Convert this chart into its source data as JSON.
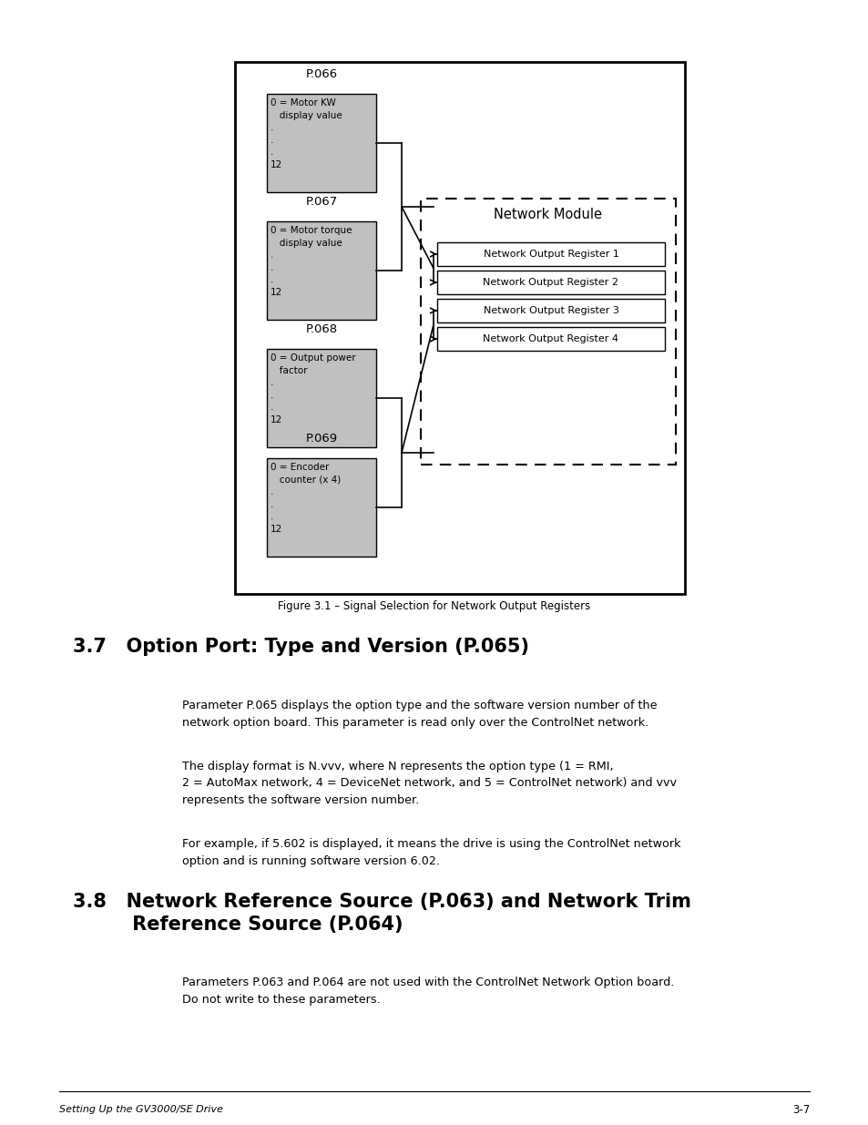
{
  "page_bg": "#ffffff",
  "figure_caption": "Figure 3.1 – Signal Selection for Network Output Registers",
  "section_37_title": "3.7   Option Port: Type and Version (P.065)",
  "section_37_para1": "Parameter P.065 displays the option type and the software version number of the\nnetwork option board. This parameter is read only over the ControlNet network.",
  "section_37_para2": "The display format is N.vvv, where N represents the option type (1 = RMI,\n2 = AutoMax network, 4 = DeviceNet network, and 5 = ControlNet network) and vvv\nrepresents the software version number.",
  "section_37_para3": "For example, if 5.602 is displayed, it means the drive is using the ControlNet network\noption and is running software version 6.02.",
  "section_38_title": "3.8   Network Reference Source (P.063) and Network Trim\n         Reference Source (P.064)",
  "section_38_para1": "Parameters P.063 and P.064 are not used with the ControlNet Network Option board.\nDo not write to these parameters.",
  "footer_left": "Setting Up the GV3000/SE Drive",
  "footer_right": "3-7",
  "diagram": {
    "outer_box_color": "#000000",
    "inner_bg": "#ffffff",
    "box_fill": "#c0c0c0",
    "network_module_label": "Network Module",
    "registers": [
      "Network Output Register 1",
      "Network Output Register 2",
      "Network Output Register 3",
      "Network Output Register 4"
    ]
  }
}
